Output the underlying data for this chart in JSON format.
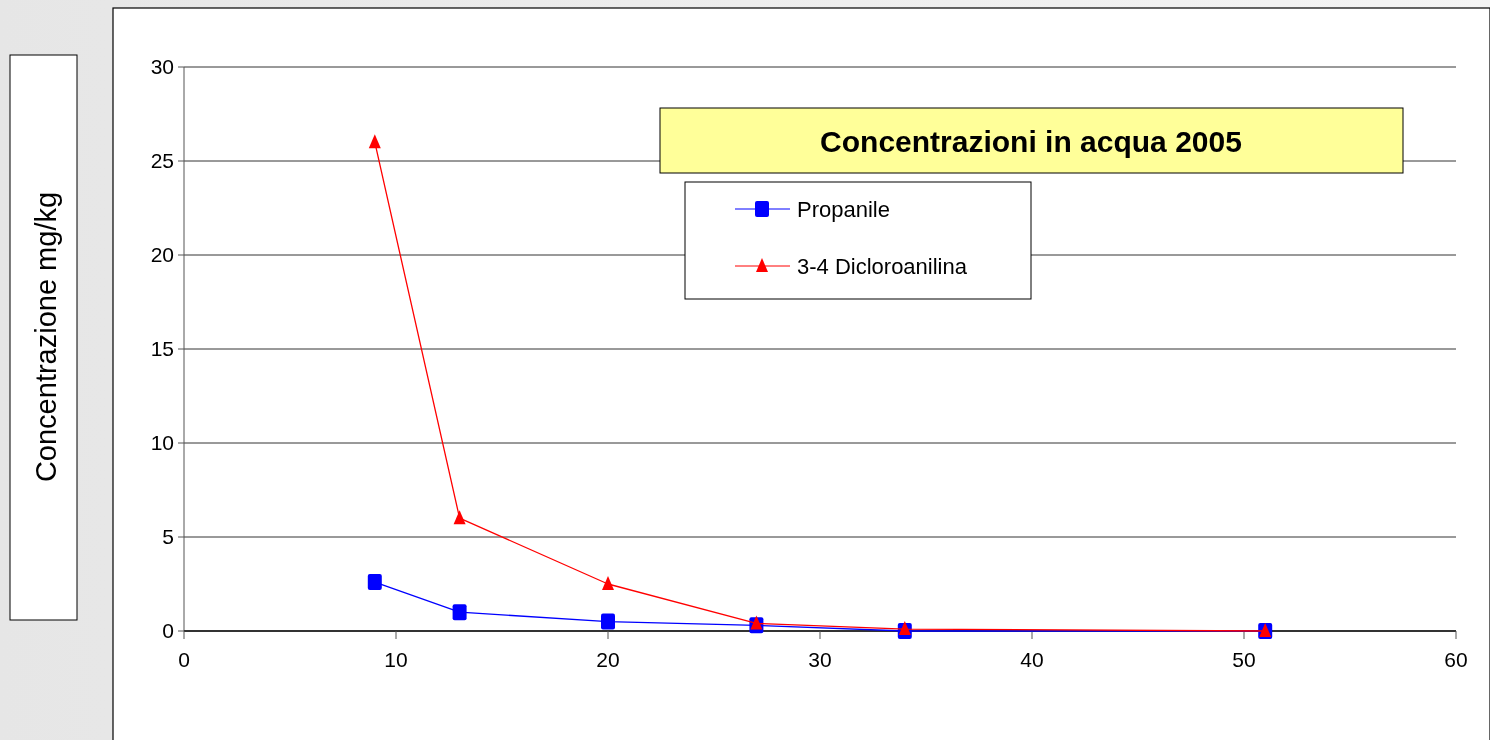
{
  "chart_data": {
    "type": "line",
    "title": "Concentrazioni in acqua 2005",
    "ylabel": "Concentrazione mg/kg",
    "x": [
      9,
      13,
      20,
      27,
      34,
      51
    ],
    "series": [
      {
        "name": "Propanile",
        "color": "#0000ff",
        "marker": "square",
        "values": [
          2.6,
          1.0,
          0.5,
          0.3,
          0,
          0
        ]
      },
      {
        "name": "3-4 Dicloroanilina",
        "color": "#ff0000",
        "marker": "triangle",
        "values": [
          26,
          6,
          2.5,
          0.4,
          0.1,
          0
        ]
      }
    ],
    "xlim": [
      0,
      60
    ],
    "xticks": [
      0,
      10,
      20,
      30,
      40,
      50,
      60
    ],
    "ylim": [
      0,
      30
    ],
    "yticks": [
      0,
      5,
      10,
      15,
      20,
      25,
      30
    ],
    "grid": "y",
    "legend": "top right"
  }
}
